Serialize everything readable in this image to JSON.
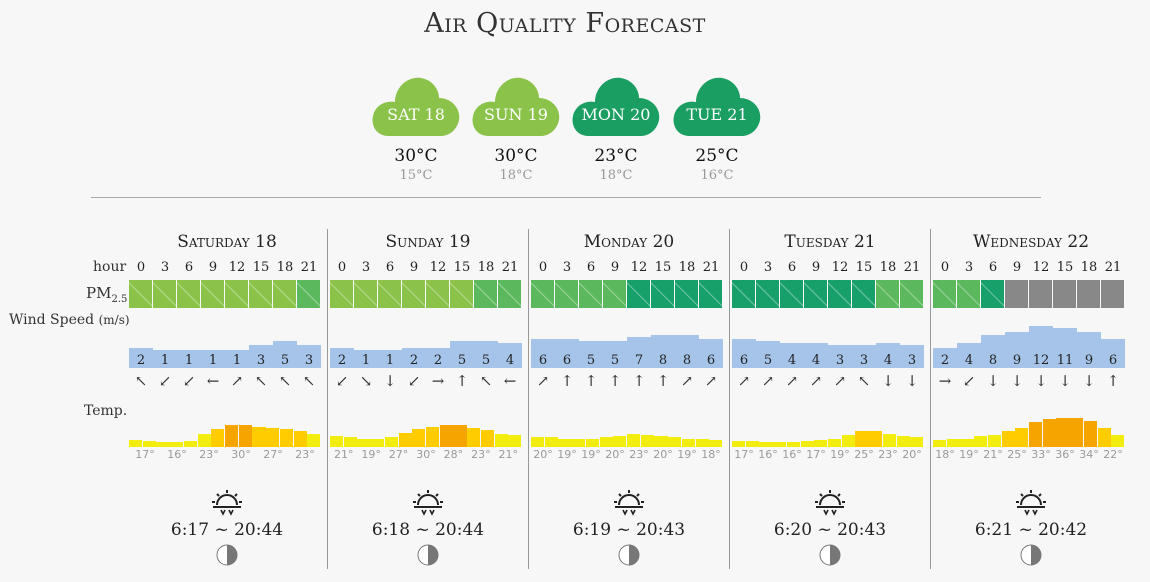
{
  "title": "Air Quality Forecast",
  "summary": [
    {
      "label": "SAT 18",
      "max": "30°C",
      "min": "15°C",
      "color": "#8bc34a"
    },
    {
      "label": "SUN 19",
      "max": "30°C",
      "min": "18°C",
      "color": "#8bc34a"
    },
    {
      "label": "MON 20",
      "max": "23°C",
      "min": "18°C",
      "color": "#1a9e62"
    },
    {
      "label": "TUE 21",
      "max": "25°C",
      "min": "16°C",
      "color": "#1a9e62"
    }
  ],
  "row_labels": {
    "hour": "hour",
    "pm": "PM",
    "pm_sub": "2.5",
    "wind": "Wind Speed",
    "wind_unit": "(m/s)",
    "temp": "Temp."
  },
  "hours": [
    "0",
    "3",
    "6",
    "9",
    "12",
    "15",
    "18",
    "21"
  ],
  "colors": {
    "pm_light": "#8bc34a",
    "pm_mid": "#5cb85c",
    "pm_dark": "#17a06a",
    "pm_na": "#888888",
    "wind": "#a6c4ea",
    "temp_low": "#f2ec0f",
    "temp_mid": "#ffcc00",
    "temp_high": "#f5a400"
  },
  "days": [
    {
      "name": "Saturday 18",
      "pm": [
        "light",
        "light",
        "light",
        "light",
        "light",
        "light",
        "light",
        "mid"
      ],
      "wind": [
        "2",
        "1",
        "1",
        "1",
        "1",
        "3",
        "5",
        "3"
      ],
      "arrows": [
        "↖",
        "↙",
        "↙",
        "←",
        "↗",
        "↖",
        "↖",
        "↖"
      ],
      "temps": [
        "17°",
        "16°",
        "23°",
        "30°",
        "27°",
        "23°"
      ],
      "temp_profile": [
        18,
        17,
        16,
        16,
        17,
        23,
        27,
        30,
        30,
        29,
        28,
        27,
        25,
        23
      ],
      "sun": "6:17 ~ 20:44"
    },
    {
      "name": "Sunday 19",
      "pm": [
        "light",
        "light",
        "light",
        "light",
        "light",
        "light",
        "mid",
        "mid"
      ],
      "wind": [
        "2",
        "1",
        "1",
        "2",
        "2",
        "5",
        "5",
        "4"
      ],
      "arrows": [
        "↙",
        "↘",
        "↓",
        "↙",
        "→",
        "↑",
        "↖",
        "←"
      ],
      "temps": [
        "21°",
        "19°",
        "27°",
        "30°",
        "28°",
        "23°",
        "21°"
      ],
      "temp_profile": [
        21,
        20,
        19,
        19,
        20,
        24,
        27,
        29,
        30,
        30,
        28,
        26,
        23,
        22
      ],
      "sun": "6:18 ~ 20:44"
    },
    {
      "name": "Monday 20",
      "pm": [
        "mid",
        "mid",
        "mid",
        "mid",
        "dark",
        "dark",
        "dark",
        "dark"
      ],
      "wind": [
        "6",
        "6",
        "5",
        "5",
        "7",
        "8",
        "8",
        "6"
      ],
      "arrows": [
        "↗",
        "↑",
        "↑",
        "↑",
        "↑",
        "↑",
        "↗",
        "↗"
      ],
      "temps": [
        "20°",
        "19°",
        "19°",
        "20°",
        "23°",
        "20°",
        "19°",
        "18°"
      ],
      "temp_profile": [
        20,
        20,
        19,
        19,
        19,
        20,
        21,
        23,
        22,
        21,
        20,
        19,
        19,
        18
      ],
      "sun": "6:19 ~ 20:43"
    },
    {
      "name": "Tuesday 21",
      "pm": [
        "dark",
        "dark",
        "dark",
        "dark",
        "dark",
        "dark",
        "mid",
        "mid"
      ],
      "wind": [
        "6",
        "5",
        "4",
        "4",
        "3",
        "3",
        "4",
        "3"
      ],
      "arrows": [
        "↗",
        "↗",
        "↗",
        "↗",
        "↗",
        "↖",
        "↓",
        "↓"
      ],
      "temps": [
        "17°",
        "16°",
        "16°",
        "17°",
        "19°",
        "25°",
        "23°",
        "20°"
      ],
      "temp_profile": [
        17,
        17,
        16,
        16,
        16,
        17,
        18,
        19,
        22,
        25,
        25,
        23,
        21,
        20
      ],
      "sun": "6:20 ~ 20:43"
    },
    {
      "name": "Wednesday 22",
      "pm": [
        "mid",
        "mid",
        "dark",
        "na",
        "na",
        "na",
        "na",
        "na"
      ],
      "wind": [
        "2",
        "4",
        "8",
        "9",
        "12",
        "11",
        "9",
        "6"
      ],
      "arrows": [
        "→",
        "↙",
        "↓",
        "↓",
        "↓",
        "↓",
        "↓",
        "↑"
      ],
      "temps": [
        "18°",
        "19°",
        "21°",
        "25°",
        "33°",
        "36°",
        "34°",
        "22°"
      ],
      "temp_profile": [
        18,
        19,
        19,
        21,
        22,
        25,
        28,
        33,
        35,
        36,
        36,
        34,
        28,
        22
      ],
      "sun": "6:21 ~ 20:42"
    }
  ]
}
